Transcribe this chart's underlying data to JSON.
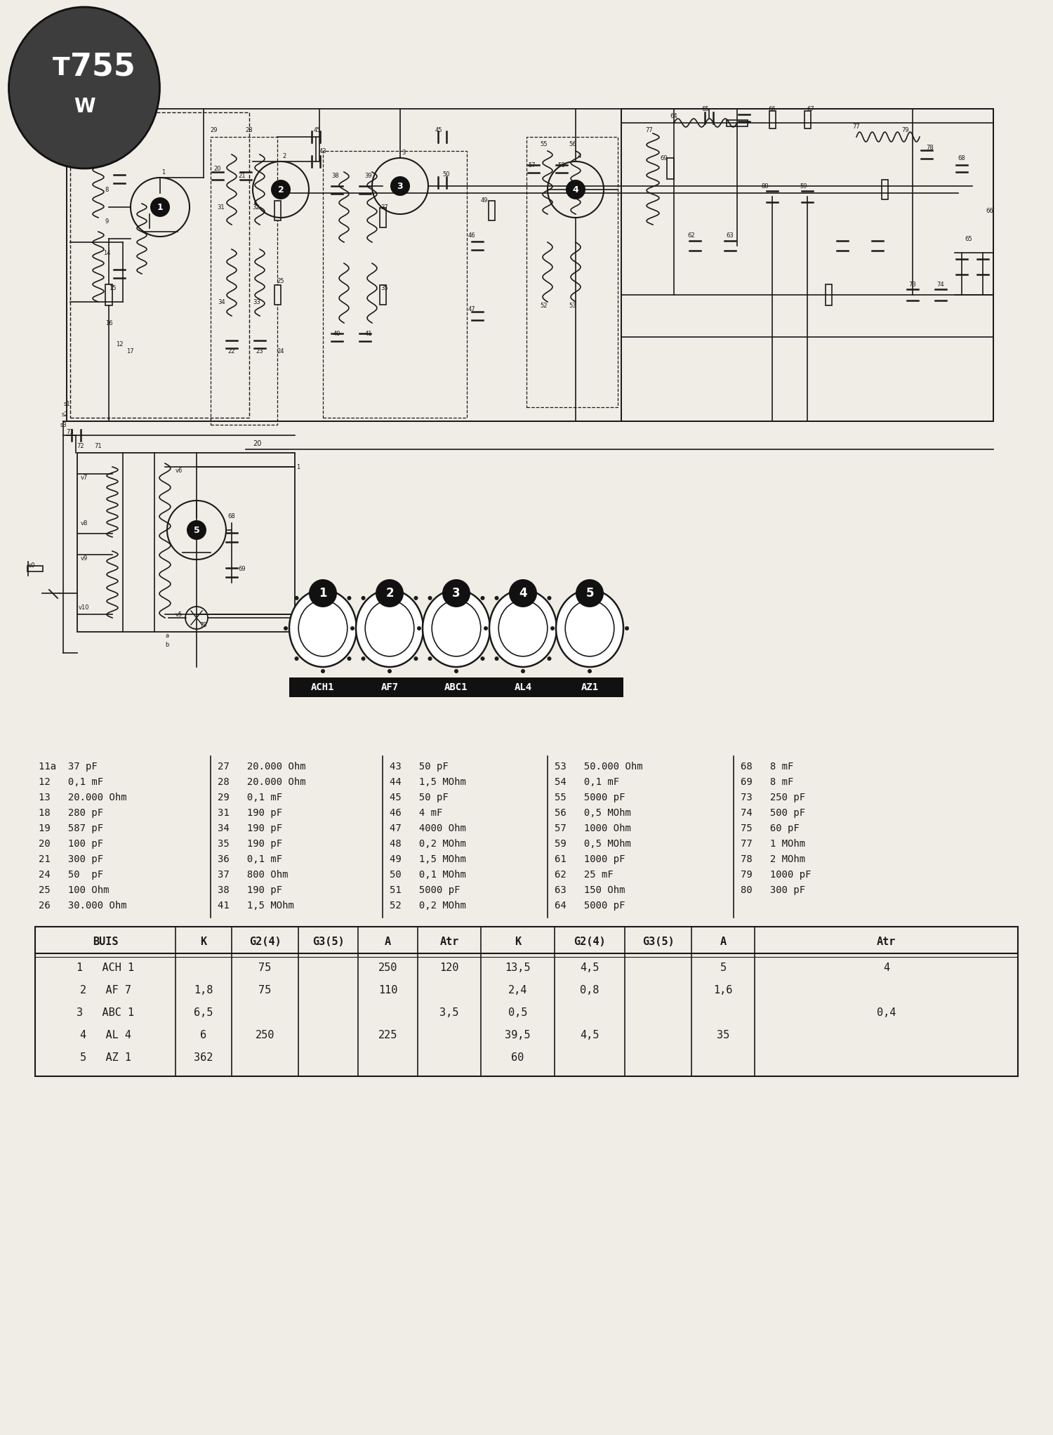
{
  "bg_color": "#f0ede6",
  "badge_color": "#3a3a3a",
  "tube_labels": [
    "ACH1",
    "AF7",
    "ABC1",
    "AL4",
    "AZ1"
  ],
  "tube_numbers": [
    "1",
    "2",
    "3",
    "4",
    "5"
  ],
  "component_list_col1": [
    "11a  37 pF",
    "12   0,1 mF",
    "13   20.000 Ohm",
    "18   280 pF",
    "19   587 pF",
    "20   100 pF",
    "21   300 pF",
    "24   50  pF",
    "25   100 Ohm",
    "26   30.000 Ohm"
  ],
  "component_list_col2": [
    "27   20.000 Ohm",
    "28   20.000 Ohm",
    "29   0,1 mF",
    "31   190 pF",
    "34   190 pF",
    "35   190 pF",
    "36   0,1 mF",
    "37   800 Ohm",
    "38   190 pF",
    "41   1,5 MOhm"
  ],
  "component_list_col3": [
    "43   50 pF",
    "44   1,5 MOhm",
    "45   50 pF",
    "46   4 mF",
    "47   4000 Ohm",
    "48   0,2 MOhm",
    "49   1,5 MOhm",
    "50   0,1 MOhm",
    "51   5000 pF",
    "52   0,2 MOhm"
  ],
  "component_list_col4": [
    "53   50.000 Ohm",
    "54   0,1 mF",
    "55   5000 pF",
    "56   0,5 MOhm",
    "57   1000 Ohm",
    "59   0,5 MOhm",
    "61   1000 pF",
    "62   25 mF",
    "63   150 Ohm",
    "64   5000 pF"
  ],
  "component_list_col5": [
    "68   8 mF",
    "69   8 mF",
    "73   250 pF",
    "74   500 pF",
    "75   60 pF",
    "77   1 MOhm",
    "78   2 MOhm",
    "79   1000 pF",
    "80   300 pF"
  ],
  "table_header": [
    "BUIS",
    "K",
    "G2(4)",
    "G3(5)",
    "A",
    "Atr",
    "K",
    "G2(4)",
    "G3(5)",
    "A",
    "Atr"
  ],
  "table_rows": [
    [
      "1   ACH 1",
      "",
      "75",
      "",
      "250",
      "120",
      "13,5",
      "4,5",
      "",
      "5",
      "4"
    ],
    [
      "2   AF 7",
      "1,8",
      "75",
      "",
      "110",
      "",
      "2,4",
      "0,8",
      "",
      "1,6",
      ""
    ],
    [
      "3   ABC 1",
      "6,5",
      "",
      "",
      "",
      "3,5",
      "0,5",
      "",
      "",
      "",
      "0,4"
    ],
    [
      "4   AL 4",
      "6",
      "250",
      "",
      "225",
      "",
      "39,5",
      "4,5",
      "",
      "35",
      ""
    ],
    [
      "5   AZ 1",
      "362",
      "",
      "",
      "",
      "",
      "60",
      "",
      "",
      "",
      ""
    ]
  ],
  "line_color": "#1a1a1a",
  "text_color": "#1a1a1a"
}
